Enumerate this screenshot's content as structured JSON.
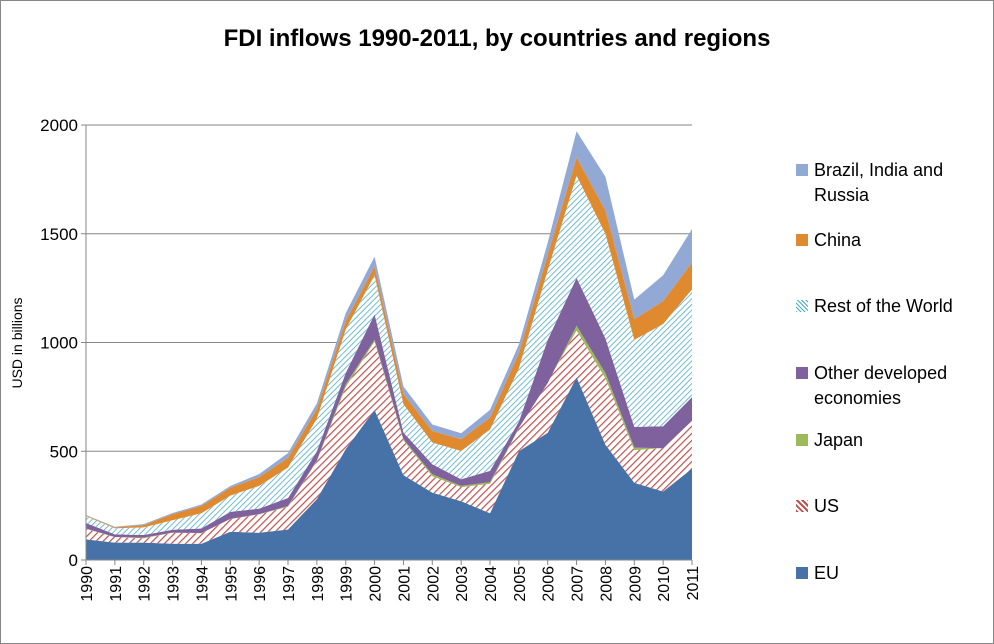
{
  "chart_data": {
    "type": "area",
    "stacked": true,
    "title": "FDI inflows 1990-2011, by countries and regions",
    "xlabel": "",
    "ylabel": "USD in billions",
    "ylim": [
      0,
      2000
    ],
    "yticks": [
      0,
      500,
      1000,
      1500,
      2000
    ],
    "grid": true,
    "legend_position": "right",
    "x": [
      "1990",
      "1991",
      "1992",
      "1993",
      "1994",
      "1995",
      "1996",
      "1997",
      "1998",
      "1999",
      "2000",
      "2001",
      "2002",
      "2003",
      "2004",
      "2005",
      "2006",
      "2007",
      "2008",
      "2009",
      "2010",
      "2011"
    ],
    "series": [
      {
        "name": "EU",
        "color": "#4672A8",
        "pattern": "solid",
        "values": [
          95,
          80,
          80,
          75,
          75,
          130,
          125,
          140,
          280,
          510,
          690,
          390,
          310,
          270,
          215,
          500,
          585,
          840,
          530,
          355,
          315,
          420
        ]
      },
      {
        "name": "US",
        "color": "#C0504D",
        "pattern": "hatch",
        "values": [
          48,
          25,
          20,
          50,
          48,
          58,
          85,
          105,
          175,
          285,
          315,
          160,
          75,
          65,
          135,
          105,
          235,
          215,
          305,
          150,
          200,
          222
        ]
      },
      {
        "name": "Japan",
        "color": "#9BBB59",
        "pattern": "solid",
        "values": [
          2,
          1,
          3,
          1,
          1,
          1,
          1,
          3,
          3,
          12,
          8,
          6,
          9,
          6,
          8,
          3,
          -6,
          22,
          24,
          12,
          -1,
          -2
        ]
      },
      {
        "name": "Other developed economies",
        "color": "#7F619E",
        "pattern": "solid",
        "values": [
          25,
          12,
          12,
          13,
          21,
          32,
          25,
          37,
          42,
          53,
          117,
          30,
          46,
          30,
          52,
          28,
          198,
          220,
          160,
          95,
          101,
          109
        ]
      },
      {
        "name": "Rest of the World",
        "color": "#4BACC6",
        "pattern": "dots",
        "values": [
          32,
          28,
          35,
          44,
          70,
          75,
          105,
          140,
          150,
          200,
          180,
          130,
          100,
          130,
          190,
          245,
          320,
          470,
          480,
          400,
          470,
          495
        ]
      },
      {
        "name": "China",
        "color": "#E08A2F",
        "pattern": "solid",
        "values": [
          3,
          4,
          11,
          28,
          34,
          36,
          40,
          45,
          45,
          40,
          40,
          47,
          53,
          54,
          55,
          70,
          72,
          84,
          108,
          95,
          106,
          124
        ]
      },
      {
        "name": "Brazil, India and Russia",
        "color": "#92A9D6",
        "pattern": "solid",
        "values": [
          2,
          3,
          4,
          5,
          6,
          8,
          14,
          22,
          25,
          35,
          45,
          35,
          30,
          28,
          35,
          40,
          55,
          120,
          155,
          90,
          118,
          154
        ]
      }
    ]
  }
}
